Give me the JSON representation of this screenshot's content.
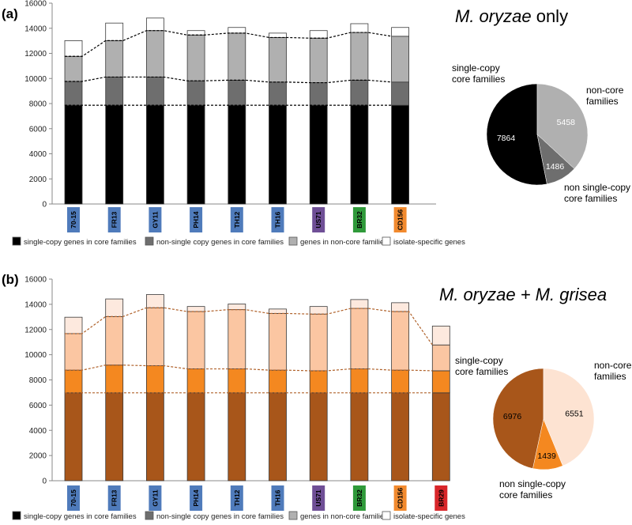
{
  "panels": [
    {
      "label": "(a)",
      "title_italic": "M. oryzae",
      "title_rest": " only"
    },
    {
      "label": "(b)",
      "title_italic": "M. oryzae + M. grisea",
      "title_rest": ""
    }
  ],
  "chart_data": [
    {
      "type": "bar",
      "stacked": true,
      "categories": [
        "70-15",
        "FR13",
        "GY11",
        "PH14",
        "TH12",
        "TH16",
        "US71",
        "BR32",
        "CD156"
      ],
      "category_badge_colors": [
        "#4f7bbb",
        "#4f7bbb",
        "#4f7bbb",
        "#4f7bbb",
        "#4f7bbb",
        "#4f7bbb",
        "#6f4f96",
        "#2f9a3a",
        "#f28a2e"
      ],
      "series": [
        {
          "name": "single-copy genes in core families",
          "color": "#000000",
          "values": [
            7864,
            7864,
            7864,
            7864,
            7864,
            7864,
            7864,
            7864,
            7864
          ]
        },
        {
          "name": "non-single copy genes in core families",
          "color": "#6e6e6e",
          "values": [
            1900,
            2250,
            2250,
            1950,
            2000,
            1850,
            1800,
            2000,
            1850
          ]
        },
        {
          "name": "genes in non-core families",
          "color": "#b0b0b0",
          "values": [
            2000,
            2900,
            3700,
            3650,
            3750,
            3550,
            3550,
            3800,
            3650
          ]
        },
        {
          "name": "isolate-specific genes",
          "color": "#ffffff",
          "values": [
            1250,
            1400,
            1000,
            350,
            450,
            350,
            600,
            700,
            700
          ]
        }
      ],
      "ylim": [
        0,
        16000
      ],
      "yticks": [
        "0",
        "2000",
        "4000",
        "6000",
        "8000",
        "10000",
        "12000",
        "14000",
        "16000"
      ],
      "grid": false,
      "legend_position": "bottom",
      "pie": {
        "type": "pie",
        "slices": [
          {
            "label": "single-copy\ncore families",
            "value": 7864,
            "value_text": "7864",
            "color": "#000000",
            "value_text_color": "#ffffff"
          },
          {
            "label": "non single-copy\ncore families",
            "value": 1486,
            "value_text": "1486",
            "color": "#6e6e6e",
            "value_text_color": "#ffffff"
          },
          {
            "label": "non-core\nfamilies",
            "value": 5458,
            "value_text": "5458",
            "color": "#b0b0b0",
            "value_text_color": "#ffffff"
          }
        ]
      }
    },
    {
      "type": "bar",
      "stacked": true,
      "categories": [
        "70-15",
        "FR13",
        "GY11",
        "PH14",
        "TH12",
        "TH16",
        "US71",
        "BR32",
        "CD156",
        "BR29"
      ],
      "category_badge_colors": [
        "#4f7bbb",
        "#4f7bbb",
        "#4f7bbb",
        "#4f7bbb",
        "#4f7bbb",
        "#4f7bbb",
        "#6f4f96",
        "#2f9a3a",
        "#f28a2e",
        "#d9262a"
      ],
      "series": [
        {
          "name": "single-copy genes in core families",
          "color": "#a8561a",
          "values": [
            6976,
            6976,
            6976,
            6976,
            6976,
            6976,
            6976,
            6976,
            6976,
            6976
          ]
        },
        {
          "name": "non-single copy genes in core families",
          "color": "#f48820",
          "values": [
            1800,
            2200,
            2150,
            1900,
            1900,
            1800,
            1750,
            1900,
            1800,
            1750
          ]
        },
        {
          "name": "genes in non-core families",
          "color": "#fbc6a2",
          "values": [
            2900,
            3850,
            4600,
            4550,
            4700,
            4500,
            4500,
            4800,
            4650,
            2050
          ]
        },
        {
          "name": "isolate-specific genes",
          "color": "#fde9de",
          "values": [
            1300,
            1400,
            1050,
            400,
            450,
            350,
            600,
            700,
            700,
            1500
          ]
        }
      ],
      "ylim": [
        0,
        16000
      ],
      "yticks": [
        "0",
        "2000",
        "4000",
        "6000",
        "8000",
        "10000",
        "12000",
        "14000",
        "16000"
      ],
      "grid": false,
      "legend_position": "bottom",
      "legend_swatch_colors": [
        "#000000",
        "#6e6e6e",
        "#b0b0b0",
        "#ffffff"
      ],
      "pie": {
        "type": "pie",
        "slices": [
          {
            "label": "single-copy\ncore families",
            "value": 6976,
            "value_text": "6976",
            "color": "#a8561a",
            "value_text_color": "#000000"
          },
          {
            "label": "non single-copy\ncore families",
            "value": 1439,
            "value_text": "1439",
            "color": "#f48820",
            "value_text_color": "#000000"
          },
          {
            "label": "non-core\nfamilies",
            "value": 6551,
            "value_text": "6551",
            "color": "#fde3d2",
            "value_text_color": "#000000"
          }
        ]
      }
    }
  ]
}
